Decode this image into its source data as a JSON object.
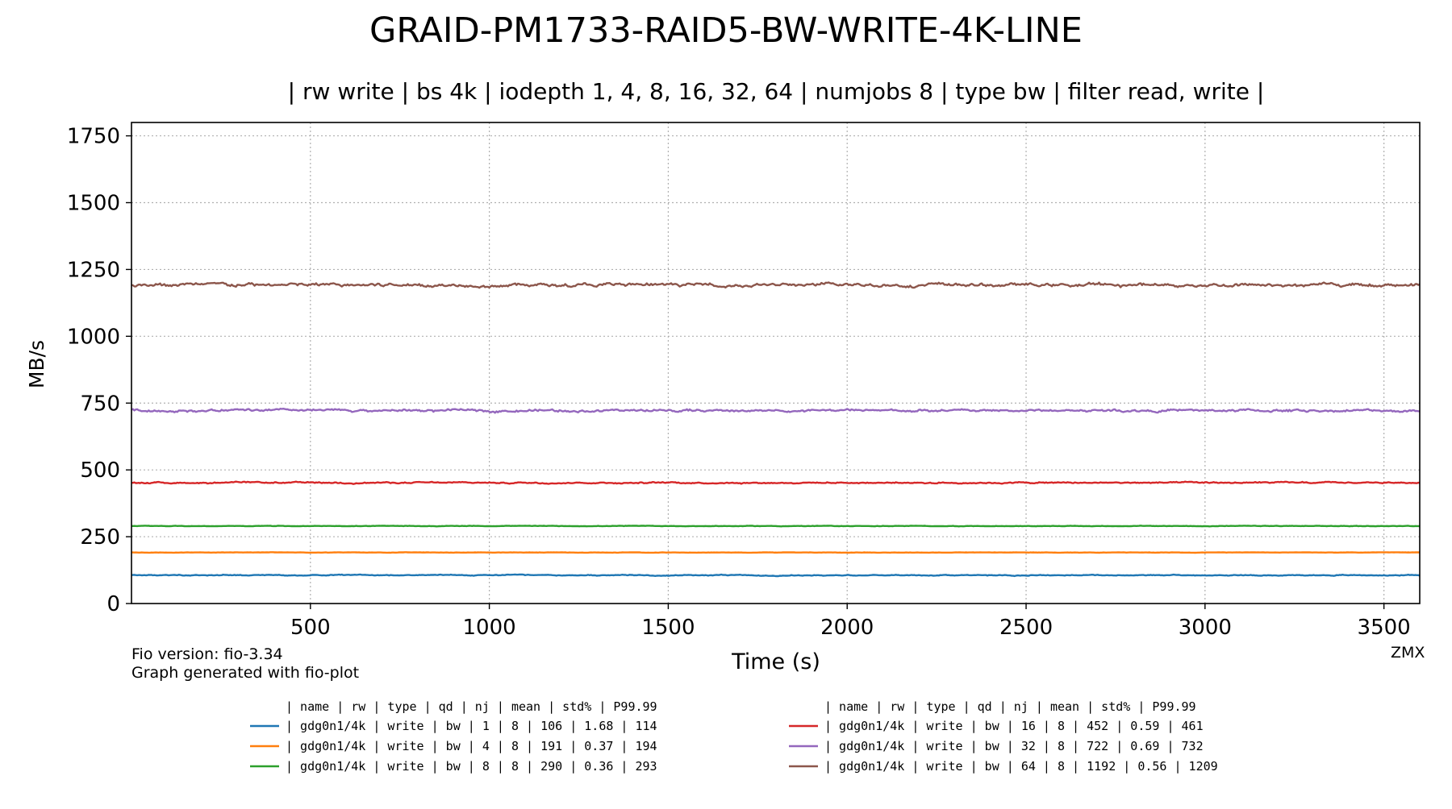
{
  "chart_data": {
    "type": "line",
    "title": "GRAID-PM1733-RAID5-BW-WRITE-4K-LINE",
    "subtitle": "| rw write | bs 4k | iodepth 1, 4, 8, 16, 32, 64 | numjobs 8 | type bw | filter read, write |",
    "xlabel": "Time (s)",
    "ylabel": "MB/s",
    "xlim": [
      0,
      3600
    ],
    "ylim": [
      0,
      1800
    ],
    "x_ticks": [
      500,
      1000,
      1500,
      2000,
      2500,
      3000,
      3500
    ],
    "y_ticks": [
      0,
      250,
      500,
      750,
      1000,
      1250,
      1500,
      1750
    ],
    "grid": true,
    "series": [
      {
        "color": "#1f77b4",
        "mean": 106,
        "std_pct": 1.68
      },
      {
        "color": "#ff7f0e",
        "mean": 191,
        "std_pct": 0.37
      },
      {
        "color": "#2ca02c",
        "mean": 290,
        "std_pct": 0.36
      },
      {
        "color": "#d62728",
        "mean": 452,
        "std_pct": 0.59
      },
      {
        "color": "#9467bd",
        "mean": 722,
        "std_pct": 0.69
      },
      {
        "color": "#8c564b",
        "mean": 1192,
        "std_pct": 0.56
      }
    ],
    "legend_placement": "bottom",
    "legend_header": "| name       | rw    | type | qd | nj | mean | std% | P99.99",
    "legend_rows": [
      "|  gdg0n1/4k | write |   bw |  1 |  8 |  106 | 1.68 |  114",
      "|  gdg0n1/4k | write |   bw |  4 |  8 |  191 | 0.37 |  194",
      "|  gdg0n1/4k | write |   bw |  8 |  8 |  290 | 0.36 |  293",
      "|  gdg0n1/4k | write |   bw | 16 |  8 |  452 | 0.59 |  461",
      "|  gdg0n1/4k | write |   bw | 32 |  8 |  722 | 0.69 |  732",
      "|  gdg0n1/4k | write |   bw | 64 |  8 | 1192 | 0.56 | 1209"
    ]
  },
  "footer": {
    "fio_version": "Fio version: fio-3.34",
    "generated_with": "Graph generated with fio-plot",
    "corner_label": "ZMX"
  }
}
